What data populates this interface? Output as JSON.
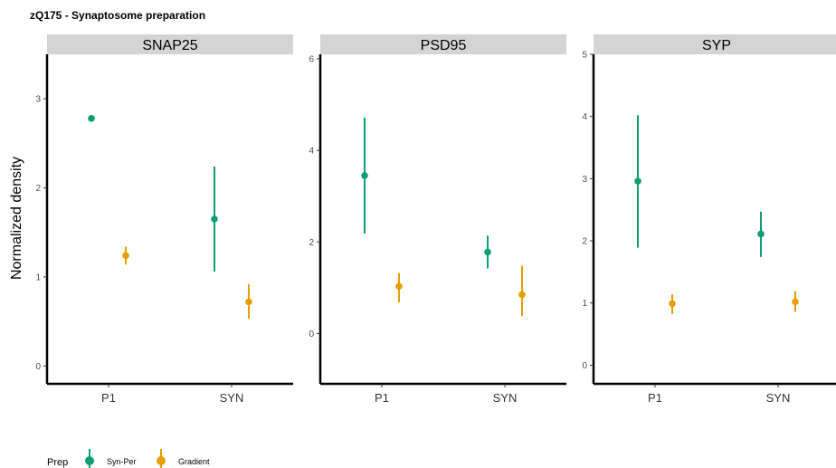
{
  "title": "zQ175 - Synaptosome preparation",
  "colors": {
    "Syn-Per": "#0e9e73",
    "Gradient": "#e69f00",
    "strip": "#d4d4d4",
    "axis": "#000000"
  },
  "legend": {
    "title": "Prep",
    "placement": "bottom-left",
    "items": [
      {
        "label": "Syn-Per",
        "color": "#0e9e73"
      },
      {
        "label": "Gradient",
        "color": "#e69f00"
      }
    ]
  },
  "chart_data": [
    {
      "type": "scatter",
      "panel": "SNAP25",
      "ylabel": "Normalized density",
      "categories": [
        "P1",
        "SYN"
      ],
      "ylim": [
        -0.2,
        3.5
      ],
      "yticks": [
        0,
        1,
        2,
        3
      ],
      "grid": false,
      "series": [
        {
          "name": "Syn-Per",
          "values": [
            2.78,
            1.65
          ],
          "lower": [
            2.78,
            1.06
          ],
          "upper": [
            2.78,
            2.24
          ]
        },
        {
          "name": "Gradient",
          "values": [
            1.24,
            0.72
          ],
          "lower": [
            1.14,
            0.53
          ],
          "upper": [
            1.34,
            0.92
          ]
        }
      ]
    },
    {
      "type": "scatter",
      "panel": "PSD95",
      "categories": [
        "P1",
        "SYN"
      ],
      "ylim": [
        -1.1,
        6.1
      ],
      "yticks": [
        0,
        2,
        4,
        6
      ],
      "grid": false,
      "series": [
        {
          "name": "Syn-Per",
          "values": [
            3.45,
            1.78
          ],
          "lower": [
            2.18,
            1.42
          ],
          "upper": [
            4.72,
            2.14
          ]
        },
        {
          "name": "Gradient",
          "values": [
            1.03,
            0.85
          ],
          "lower": [
            0.68,
            0.38
          ],
          "upper": [
            1.32,
            1.48
          ]
        }
      ]
    },
    {
      "type": "scatter",
      "panel": "SYP",
      "categories": [
        "P1",
        "SYN"
      ],
      "ylim": [
        -0.3,
        5.0
      ],
      "yticks": [
        0,
        1,
        2,
        3,
        4,
        5
      ],
      "grid": false,
      "series": [
        {
          "name": "Syn-Per",
          "values": [
            2.96,
            2.11
          ],
          "lower": [
            1.89,
            1.74
          ],
          "upper": [
            4.02,
            2.47
          ]
        },
        {
          "name": "Gradient",
          "values": [
            0.99,
            1.02
          ],
          "lower": [
            0.82,
            0.86
          ],
          "upper": [
            1.14,
            1.19
          ]
        }
      ]
    }
  ]
}
